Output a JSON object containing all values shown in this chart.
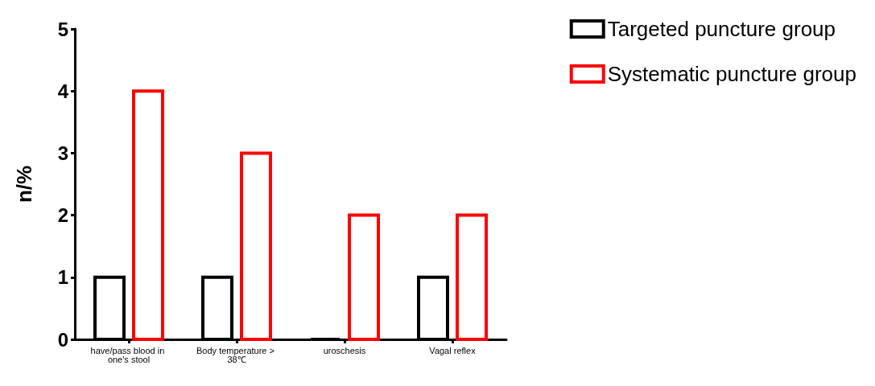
{
  "chart_data": {
    "type": "bar",
    "ylabel": "n/%",
    "categories": [
      "have/pass blood in one's stool",
      "Body temperature > 38℃",
      "uroschesis",
      "Vagal reflex"
    ],
    "series": [
      {
        "name": "Targeted puncture group",
        "color": "#000000",
        "values": [
          1,
          1,
          0,
          1
        ]
      },
      {
        "name": "Systematic puncture group",
        "color": "#ff0000",
        "values": [
          4,
          3,
          2,
          2
        ]
      }
    ],
    "ylim": [
      0,
      5
    ],
    "yticks": [
      0,
      1,
      2,
      3,
      4,
      5
    ],
    "grid": false,
    "legend": "top right"
  }
}
